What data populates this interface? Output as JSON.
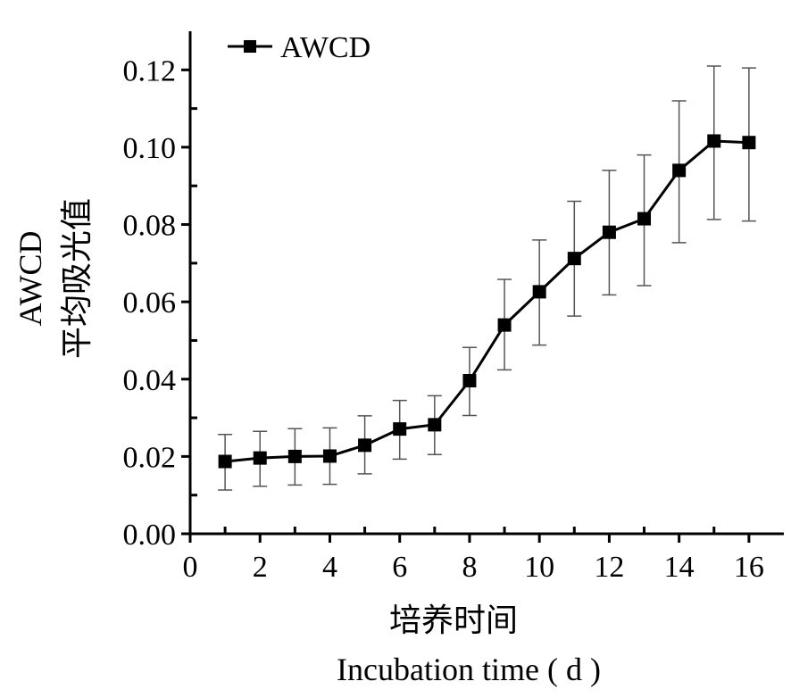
{
  "chart_data": {
    "type": "line",
    "title": "",
    "xlabel_cn": "培养时间",
    "xlabel_en": "Incubation time ( d )",
    "ylabel_en": "AWCD",
    "ylabel_cn": "平均吸光值",
    "xlim": [
      0,
      17
    ],
    "ylim": [
      0,
      0.13
    ],
    "xticks": [
      0,
      2,
      4,
      6,
      8,
      10,
      12,
      14,
      16
    ],
    "xtick_labels": [
      "0",
      "2",
      "4",
      "6",
      "8",
      "10",
      "12",
      "14",
      "16"
    ],
    "yticks": [
      0.0,
      0.02,
      0.04,
      0.06,
      0.08,
      0.1,
      0.12
    ],
    "ytick_labels": [
      "0.00",
      "0.02",
      "0.04",
      "0.06",
      "0.08",
      "0.10",
      "0.12"
    ],
    "grid": false,
    "legend": {
      "position": "top-left",
      "entries": [
        "AWCD"
      ]
    },
    "series": [
      {
        "name": "AWCD",
        "color": "#000000",
        "marker": "square",
        "x": [
          1,
          2,
          3,
          4,
          5,
          6,
          7,
          8,
          9,
          10,
          11,
          12,
          13,
          14,
          15,
          16
        ],
        "y": [
          0.0187,
          0.0196,
          0.02,
          0.0201,
          0.0229,
          0.0271,
          0.0282,
          0.0396,
          0.054,
          0.0626,
          0.0712,
          0.078,
          0.0815,
          0.094,
          0.1016,
          0.1012
        ],
        "err_low": [
          0.0113,
          0.0123,
          0.0126,
          0.0128,
          0.0155,
          0.0193,
          0.0205,
          0.0306,
          0.0424,
          0.0488,
          0.0563,
          0.0618,
          0.0642,
          0.0753,
          0.0813,
          0.0809
        ],
        "err_high": [
          0.0257,
          0.0265,
          0.0272,
          0.0274,
          0.0305,
          0.0345,
          0.0357,
          0.0482,
          0.0658,
          0.076,
          0.086,
          0.094,
          0.098,
          0.112,
          0.121,
          0.1205
        ]
      }
    ]
  }
}
